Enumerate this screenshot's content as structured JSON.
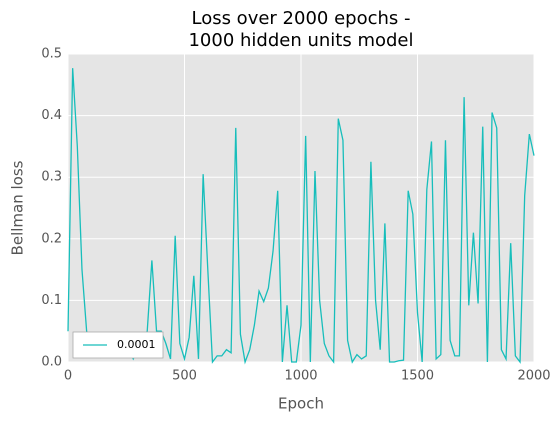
{
  "chart_data": {
    "type": "line",
    "title": [
      "Loss over 2000 epochs -",
      "1000 hidden units model"
    ],
    "xlabel": "Epoch",
    "ylabel": "Bellman loss",
    "xlim": [
      0,
      2000
    ],
    "xticks": [
      0,
      500,
      1000,
      1500,
      2000
    ],
    "ylim": [
      0,
      0.5
    ],
    "yticks": [
      {
        "value": 0,
        "label": "0.0"
      },
      0.1,
      0.2,
      0.3,
      0.4,
      0.5
    ],
    "grid": true,
    "legend": "lower left",
    "x": [
      0,
      20,
      40,
      60,
      80,
      100,
      120,
      140,
      160,
      180,
      200,
      220,
      240,
      260,
      280,
      300,
      320,
      340,
      360,
      380,
      400,
      420,
      440,
      460,
      480,
      500,
      520,
      540,
      560,
      580,
      600,
      620,
      640,
      660,
      680,
      700,
      720,
      740,
      760,
      780,
      800,
      820,
      840,
      860,
      880,
      900,
      920,
      940,
      960,
      980,
      1000,
      1020,
      1040,
      1060,
      1080,
      1100,
      1120,
      1140,
      1160,
      1180,
      1200,
      1220,
      1240,
      1260,
      1280,
      1300,
      1320,
      1340,
      1360,
      1380,
      1400,
      1420,
      1440,
      1460,
      1480,
      1500,
      1520,
      1540,
      1560,
      1580,
      1600,
      1620,
      1640,
      1660,
      1680,
      1700,
      1720,
      1740,
      1760,
      1780,
      1800,
      1820,
      1840,
      1860,
      1880,
      1900,
      1920,
      1940,
      1960,
      1980,
      2000
    ],
    "series": [
      {
        "name": "0.0001",
        "color": "#17bebb",
        "values": [
          0.05,
          0.477,
          0.35,
          0.15,
          0.05,
          0.03,
          0.02,
          0.008,
          0.02,
          0.015,
          0.01,
          0.02,
          0.01,
          0.02,
          0.005,
          0.02,
          0.03,
          0.05,
          0.165,
          0.05,
          0.05,
          0.03,
          0.005,
          0.205,
          0.03,
          0.005,
          0.04,
          0.14,
          0.005,
          0.305,
          0.15,
          0,
          0.01,
          0.01,
          0.02,
          0.015,
          0.38,
          0.045,
          0,
          0.02,
          0.06,
          0.115,
          0.098,
          0.12,
          0.18,
          0.278,
          0,
          0.092,
          0,
          0,
          0.06,
          0.367,
          0,
          0.31,
          0.1,
          0.03,
          0.01,
          0,
          0.395,
          0.36,
          0.035,
          0,
          0.012,
          0.005,
          0.01,
          0.325,
          0.1,
          0.02,
          0.225,
          0,
          0,
          0.002,
          0.003,
          0.278,
          0.24,
          0.08,
          0,
          0.28,
          0.358,
          0.005,
          0.012,
          0.36,
          0.035,
          0.01,
          0.01,
          0.43,
          0.092,
          0.21,
          0.095,
          0.382,
          0,
          0.405,
          0.38,
          0.02,
          0.005,
          0.193,
          0.01,
          0,
          0.27,
          0.37,
          0.335
        ]
      }
    ]
  }
}
